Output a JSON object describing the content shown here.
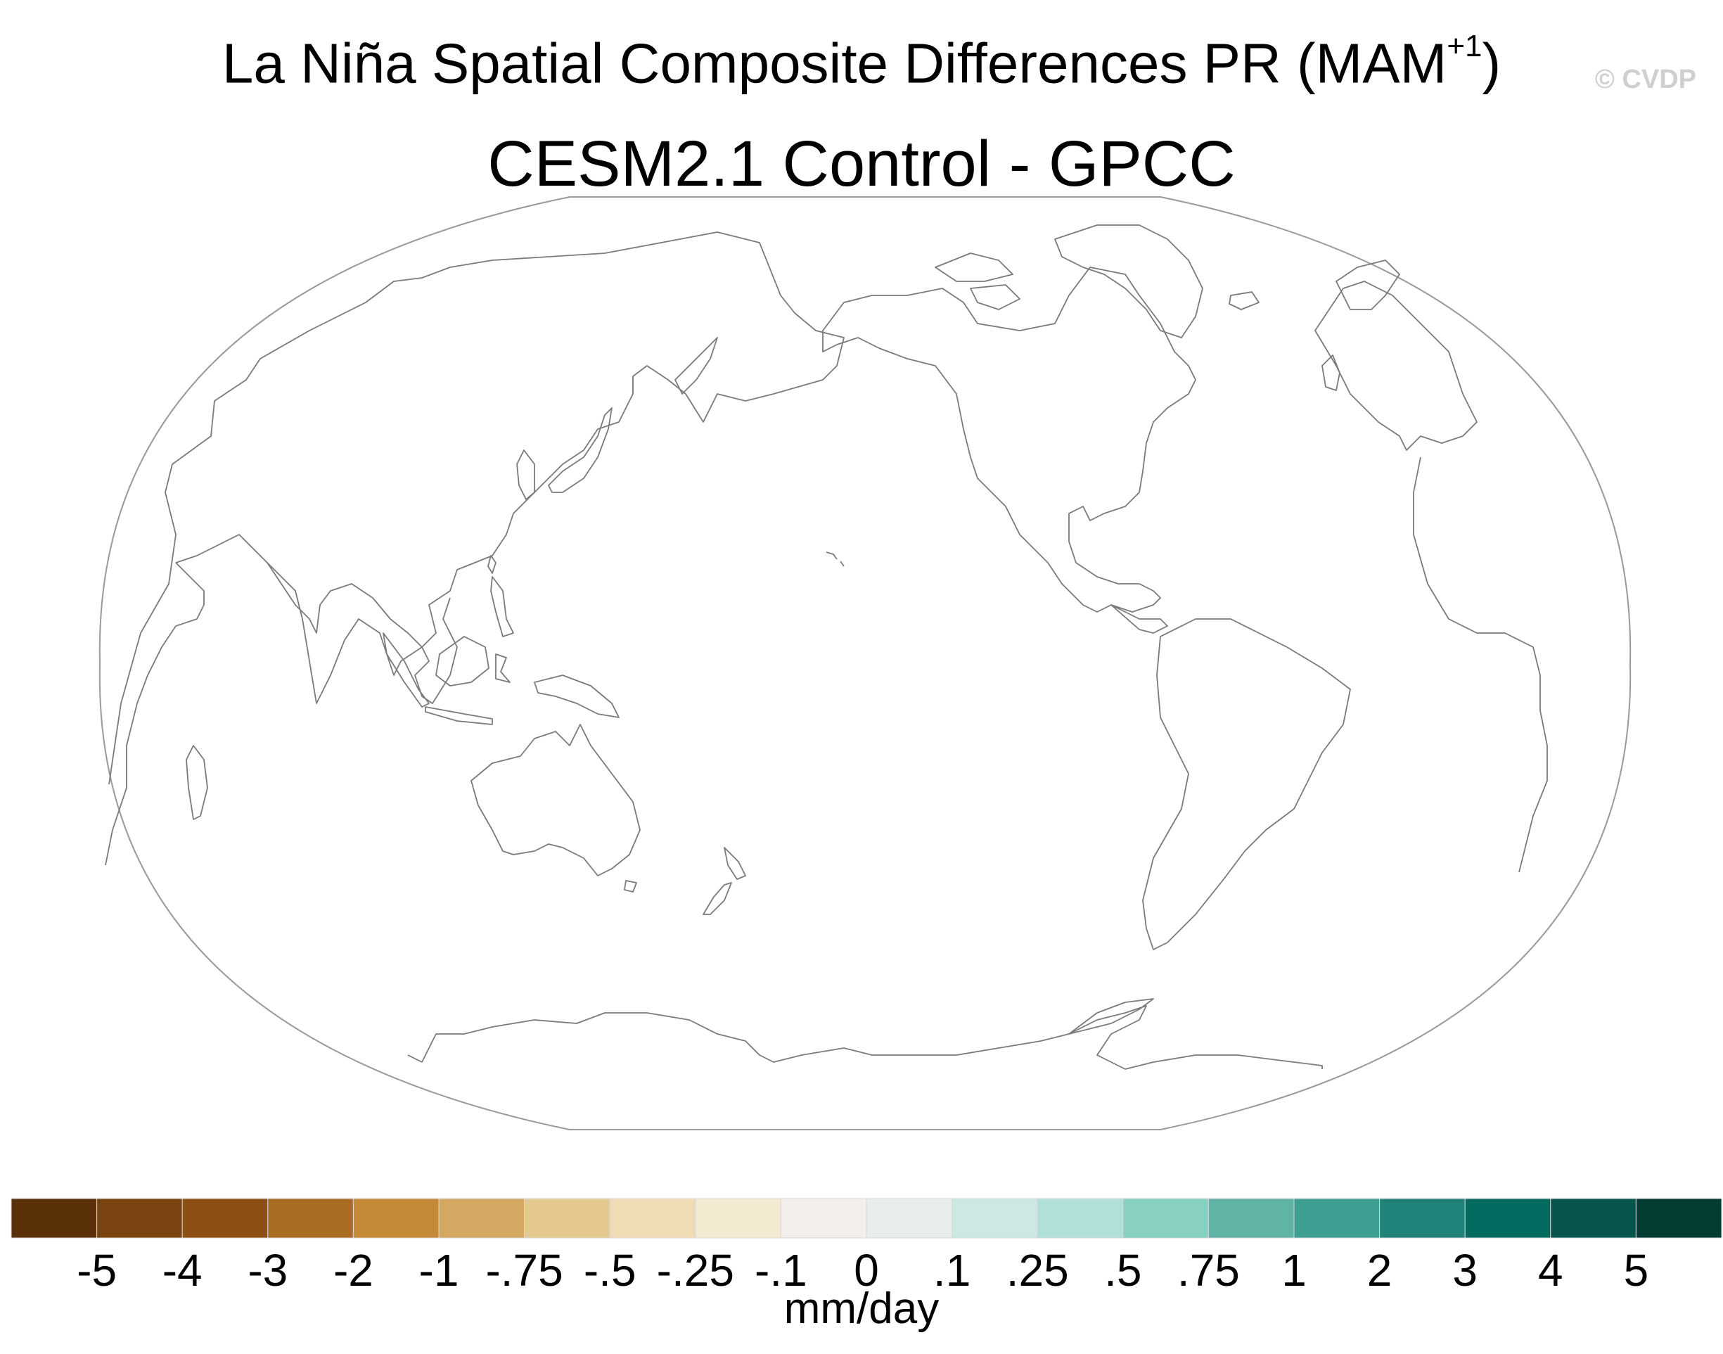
{
  "title": {
    "main": "La Niña Spatial Composite Differences PR (MAM",
    "superscript": "+1",
    "close": ")"
  },
  "subtitle": "CESM2.1 Control - GPCC",
  "credit": "© CVDP",
  "map": {
    "projection": "Winkel tripel / Robinson-style, Pacific-centered",
    "outline_color": "#9a9a9a",
    "coastline_color": "#7a7a7a"
  },
  "colorbar": {
    "units": "mm/day",
    "tick_labels": [
      "-5",
      "-4",
      "-3",
      "-2",
      "-1",
      "-.75",
      "-.5",
      "-.25",
      "-.1",
      "0",
      ".1",
      ".25",
      ".5",
      ".75",
      "1",
      "2",
      "3",
      "4",
      "5"
    ],
    "colors": [
      "#5a3008",
      "#7a4410",
      "#8e5012",
      "#a96c22",
      "#c48a38",
      "#d4a860",
      "#e4c890",
      "#f0dcb4",
      "#f4ead2",
      "#f3f0ec",
      "#e8eeec",
      "#cde8e2",
      "#b0e0d8",
      "#88d0c2",
      "#60b4a6",
      "#3e9e92",
      "#208278",
      "#056a60",
      "#05554a",
      "#033c32"
    ]
  }
}
